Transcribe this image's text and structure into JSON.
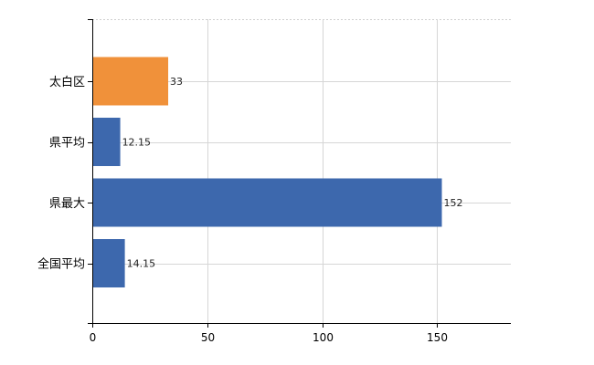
{
  "chart_data": {
    "type": "bar",
    "orientation": "horizontal",
    "categories": [
      "太白区",
      "県平均",
      "県最大",
      "全国平均"
    ],
    "values": [
      33,
      12.15,
      152,
      14.15
    ],
    "data_labels": [
      "33",
      "12.15",
      "152",
      "14.15"
    ],
    "bar_colors": [
      "#f0913a",
      "#3d68ad",
      "#3d68ad",
      "#3d68ad"
    ],
    "xticks": [
      0,
      50,
      100,
      150
    ],
    "xtick_labels": [
      "0",
      "50",
      "100",
      "150"
    ],
    "xlim": [
      0,
      182
    ],
    "grid": true,
    "title": "",
    "xlabel": "",
    "ylabel": ""
  }
}
